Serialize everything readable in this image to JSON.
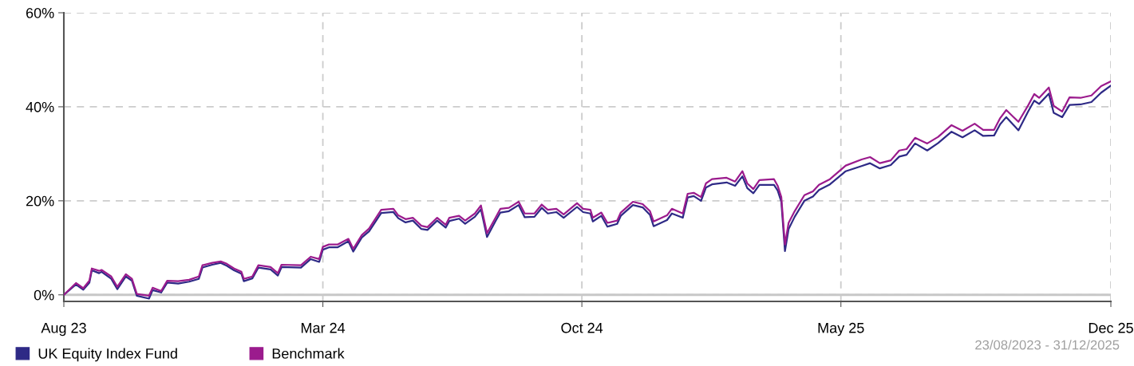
{
  "chart_data": {
    "type": "line",
    "x": [
      "2023-08-23",
      "2023-09-02",
      "2023-09-08",
      "2023-09-13",
      "2023-09-15",
      "2023-09-21",
      "2023-09-23",
      "2023-10-01",
      "2023-10-06",
      "2023-10-13",
      "2023-10-18",
      "2023-10-22",
      "2023-11-01",
      "2023-11-04",
      "2023-11-11",
      "2023-11-16",
      "2023-11-25",
      "2023-12-04",
      "2023-12-12",
      "2023-12-15",
      "2023-12-23",
      "2023-12-30",
      "2024-01-04",
      "2024-01-10",
      "2024-01-16",
      "2024-01-18",
      "2024-01-25",
      "2024-01-30",
      "2024-02-09",
      "2024-02-15",
      "2024-02-18",
      "2024-03-05",
      "2024-03-13",
      "2024-03-20",
      "2024-03-23",
      "2024-03-28",
      "2024-04-04",
      "2024-04-13",
      "2024-04-17",
      "2024-04-24",
      "2024-04-30",
      "2024-05-10",
      "2024-05-20",
      "2024-05-24",
      "2024-05-30",
      "2024-06-05",
      "2024-06-12",
      "2024-06-17",
      "2024-06-25",
      "2024-07-02",
      "2024-07-05",
      "2024-07-13",
      "2024-07-18",
      "2024-07-26",
      "2024-07-31",
      "2024-08-05",
      "2024-08-12",
      "2024-08-16",
      "2024-08-23",
      "2024-08-31",
      "2024-09-05",
      "2024-09-13",
      "2024-09-19",
      "2024-09-24",
      "2024-10-01",
      "2024-10-07",
      "2024-10-18",
      "2024-10-23",
      "2024-10-29",
      "2024-10-31",
      "2024-11-07",
      "2024-11-12",
      "2024-11-20",
      "2024-11-23",
      "2024-12-03",
      "2024-12-11",
      "2024-12-17",
      "2024-12-20",
      "2024-12-31",
      "2025-01-04",
      "2025-01-13",
      "2025-01-17",
      "2025-01-22",
      "2025-01-28",
      "2025-02-01",
      "2025-02-06",
      "2025-02-18",
      "2025-02-25",
      "2025-03-03",
      "2025-03-07",
      "2025-03-12",
      "2025-03-17",
      "2025-03-29",
      "2025-04-01",
      "2025-04-04",
      "2025-04-07",
      "2025-04-10",
      "2025-04-15",
      "2025-04-23",
      "2025-04-30",
      "2025-05-05",
      "2025-05-14",
      "2025-05-27",
      "2025-06-09",
      "2025-06-16",
      "2025-06-24",
      "2025-07-03",
      "2025-07-10",
      "2025-07-16",
      "2025-07-23",
      "2025-08-02",
      "2025-08-11",
      "2025-08-22",
      "2025-08-31",
      "2025-09-10",
      "2025-09-17",
      "2025-09-26",
      "2025-10-01",
      "2025-10-06",
      "2025-10-16",
      "2025-10-24",
      "2025-10-29",
      "2025-11-02",
      "2025-11-10",
      "2025-11-14",
      "2025-11-21",
      "2025-11-27",
      "2025-12-06",
      "2025-12-15",
      "2025-12-23",
      "2025-12-31"
    ],
    "series": [
      {
        "name": "UK Equity Index Fund",
        "color": "#2e2a86",
        "values": [
          0,
          2.2,
          1.1,
          2.6,
          5.2,
          4.6,
          4.9,
          3.4,
          1.2,
          3.9,
          3.0,
          -0.2,
          -0.8,
          1.0,
          0.5,
          2.6,
          2.4,
          2.8,
          3.4,
          5.8,
          6.4,
          6.8,
          6.2,
          5.2,
          4.5,
          2.9,
          3.5,
          5.8,
          5.4,
          4.1,
          5.9,
          5.8,
          7.6,
          7.0,
          9.6,
          10.1,
          10.1,
          11.4,
          9.2,
          12.2,
          13.5,
          17.4,
          17.6,
          16.3,
          15.4,
          15.8,
          14.0,
          13.8,
          15.8,
          14.3,
          15.7,
          16.2,
          15.1,
          16.6,
          18.2,
          12.3,
          15.7,
          17.5,
          17.8,
          19.1,
          16.5,
          16.6,
          18.5,
          17.3,
          17.6,
          16.4,
          18.7,
          17.6,
          17.3,
          15.6,
          16.8,
          14.5,
          15.1,
          16.8,
          19.1,
          18.6,
          17.0,
          14.6,
          15.9,
          17.3,
          16.4,
          20.7,
          21.0,
          20.0,
          22.8,
          23.5,
          23.9,
          23.2,
          25.2,
          22.7,
          21.6,
          23.4,
          23.4,
          22.2,
          19.8,
          9.3,
          14.0,
          16.6,
          20.0,
          20.9,
          22.3,
          23.5,
          26.3,
          27.4,
          28.0,
          26.9,
          27.6,
          29.4,
          29.8,
          32.2,
          30.7,
          32.3,
          34.7,
          33.5,
          35.0,
          33.8,
          33.9,
          36.3,
          37.8,
          35.0,
          39.0,
          41.3,
          40.6,
          42.8,
          38.7,
          37.8,
          40.4,
          40.5,
          41.0,
          43.0,
          44.5
        ]
      },
      {
        "name": "Benchmark",
        "color": "#9b1b8d",
        "values": [
          0,
          2.5,
          1.4,
          3.0,
          5.6,
          5.1,
          5.3,
          3.9,
          1.7,
          4.4,
          3.4,
          0.2,
          -0.2,
          1.5,
          0.8,
          3.0,
          2.9,
          3.2,
          3.9,
          6.3,
          6.8,
          7.1,
          6.6,
          5.6,
          4.9,
          3.4,
          3.9,
          6.3,
          5.9,
          4.6,
          6.4,
          6.3,
          8.1,
          7.6,
          10.2,
          10.7,
          10.7,
          11.9,
          9.8,
          12.7,
          14.1,
          18.1,
          18.3,
          16.9,
          16.1,
          16.4,
          14.7,
          14.4,
          16.4,
          14.9,
          16.4,
          16.8,
          15.8,
          17.3,
          19.0,
          13.1,
          16.4,
          18.3,
          18.5,
          19.8,
          17.3,
          17.3,
          19.2,
          18.1,
          18.3,
          17.1,
          19.5,
          18.3,
          18.1,
          16.4,
          17.5,
          15.3,
          15.8,
          17.5,
          19.8,
          19.3,
          17.8,
          15.6,
          16.9,
          18.3,
          17.3,
          21.5,
          21.7,
          20.8,
          23.7,
          24.6,
          24.9,
          24.1,
          26.3,
          23.7,
          22.5,
          24.4,
          24.6,
          23.2,
          20.8,
          10.7,
          15.3,
          17.8,
          21.2,
          22.0,
          23.4,
          24.6,
          27.5,
          28.8,
          29.3,
          28.0,
          28.6,
          30.7,
          31.0,
          33.4,
          32.2,
          33.6,
          36.1,
          34.9,
          36.4,
          35.1,
          35.1,
          37.6,
          39.3,
          36.8,
          40.3,
          42.7,
          41.9,
          44.1,
          40.2,
          39.0,
          42.0,
          41.9,
          42.4,
          44.4,
          45.4
        ]
      }
    ],
    "xlim": [
      "2023-08-23",
      "2025-12-31"
    ],
    "xticks": [
      {
        "value": "2023-08-23",
        "label": "Aug 23"
      },
      {
        "value": "2024-03-23",
        "label": "Mar 24"
      },
      {
        "value": "2024-10-22",
        "label": "Oct 24"
      },
      {
        "value": "2025-05-23",
        "label": "May 25"
      },
      {
        "value": "2025-12-31",
        "label": "Dec 25"
      }
    ],
    "ylim": [
      -1.4,
      60
    ],
    "yticks": [
      {
        "value": 0,
        "label": "0%"
      },
      {
        "value": 20,
        "label": "20%"
      },
      {
        "value": 40,
        "label": "40%"
      },
      {
        "value": 60,
        "label": "60%"
      }
    ],
    "ref_lines": [
      {
        "axis": "y",
        "value": 0,
        "color": "#c8c8c8",
        "line_style": "solid"
      }
    ],
    "grid": true,
    "legend": "bottom left",
    "marker": "none",
    "line_style": "solid",
    "annotations": [
      "23/08/2023 - 31/12/2025"
    ]
  }
}
